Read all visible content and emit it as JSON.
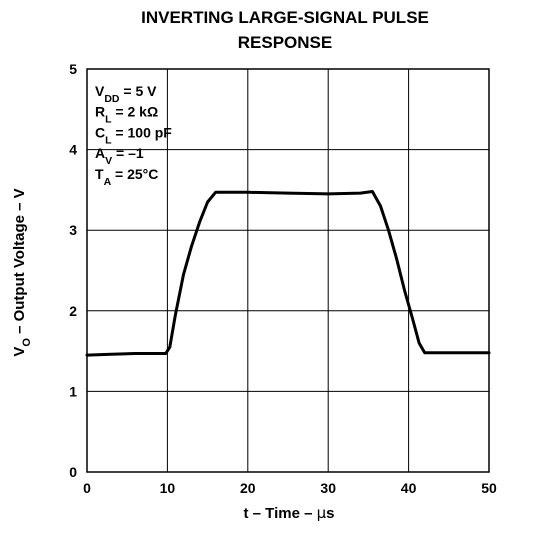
{
  "chart_data": {
    "type": "line",
    "title": [
      "INVERTING LARGE-SIGNAL PULSE",
      "RESPONSE"
    ],
    "xlabel": {
      "prefix": "t – Time – ",
      "unit_symbol": "μ",
      "unit_tail": "s"
    },
    "ylabel": {
      "main": "V",
      "sub": "O",
      "rest": " – Output Voltage – V"
    },
    "xlim": [
      0,
      50
    ],
    "ylim": [
      0,
      5
    ],
    "x_ticks": [
      0,
      10,
      20,
      30,
      40,
      50
    ],
    "y_ticks": [
      0,
      1,
      2,
      3,
      4,
      5
    ],
    "grid": true,
    "annotations": [
      {
        "main": "V",
        "sub": "DD",
        "rest": " = 5 V"
      },
      {
        "main": "R",
        "sub": "L",
        "rest": " = 2 kΩ"
      },
      {
        "main": "C",
        "sub": "L",
        "rest": " = 100 pF"
      },
      {
        "main": "A",
        "sub": "V",
        "rest": " = –1"
      },
      {
        "main": "T",
        "sub": "A",
        "rest": " = 25°C"
      }
    ],
    "series": [
      {
        "color": "#000000",
        "points": [
          [
            0,
            1.45
          ],
          [
            3,
            1.46
          ],
          [
            6,
            1.47
          ],
          [
            9.8,
            1.47
          ],
          [
            10.3,
            1.55
          ],
          [
            11,
            1.95
          ],
          [
            12,
            2.45
          ],
          [
            13,
            2.8
          ],
          [
            14,
            3.1
          ],
          [
            15,
            3.35
          ],
          [
            16,
            3.47
          ],
          [
            20,
            3.47
          ],
          [
            25,
            3.46
          ],
          [
            30,
            3.45
          ],
          [
            34,
            3.46
          ],
          [
            35.5,
            3.48
          ],
          [
            36.5,
            3.3
          ],
          [
            37.5,
            3.0
          ],
          [
            38.5,
            2.65
          ],
          [
            39.5,
            2.25
          ],
          [
            40.5,
            1.9
          ],
          [
            41.3,
            1.6
          ],
          [
            42,
            1.48
          ],
          [
            45,
            1.48
          ],
          [
            50,
            1.48
          ]
        ]
      }
    ]
  }
}
